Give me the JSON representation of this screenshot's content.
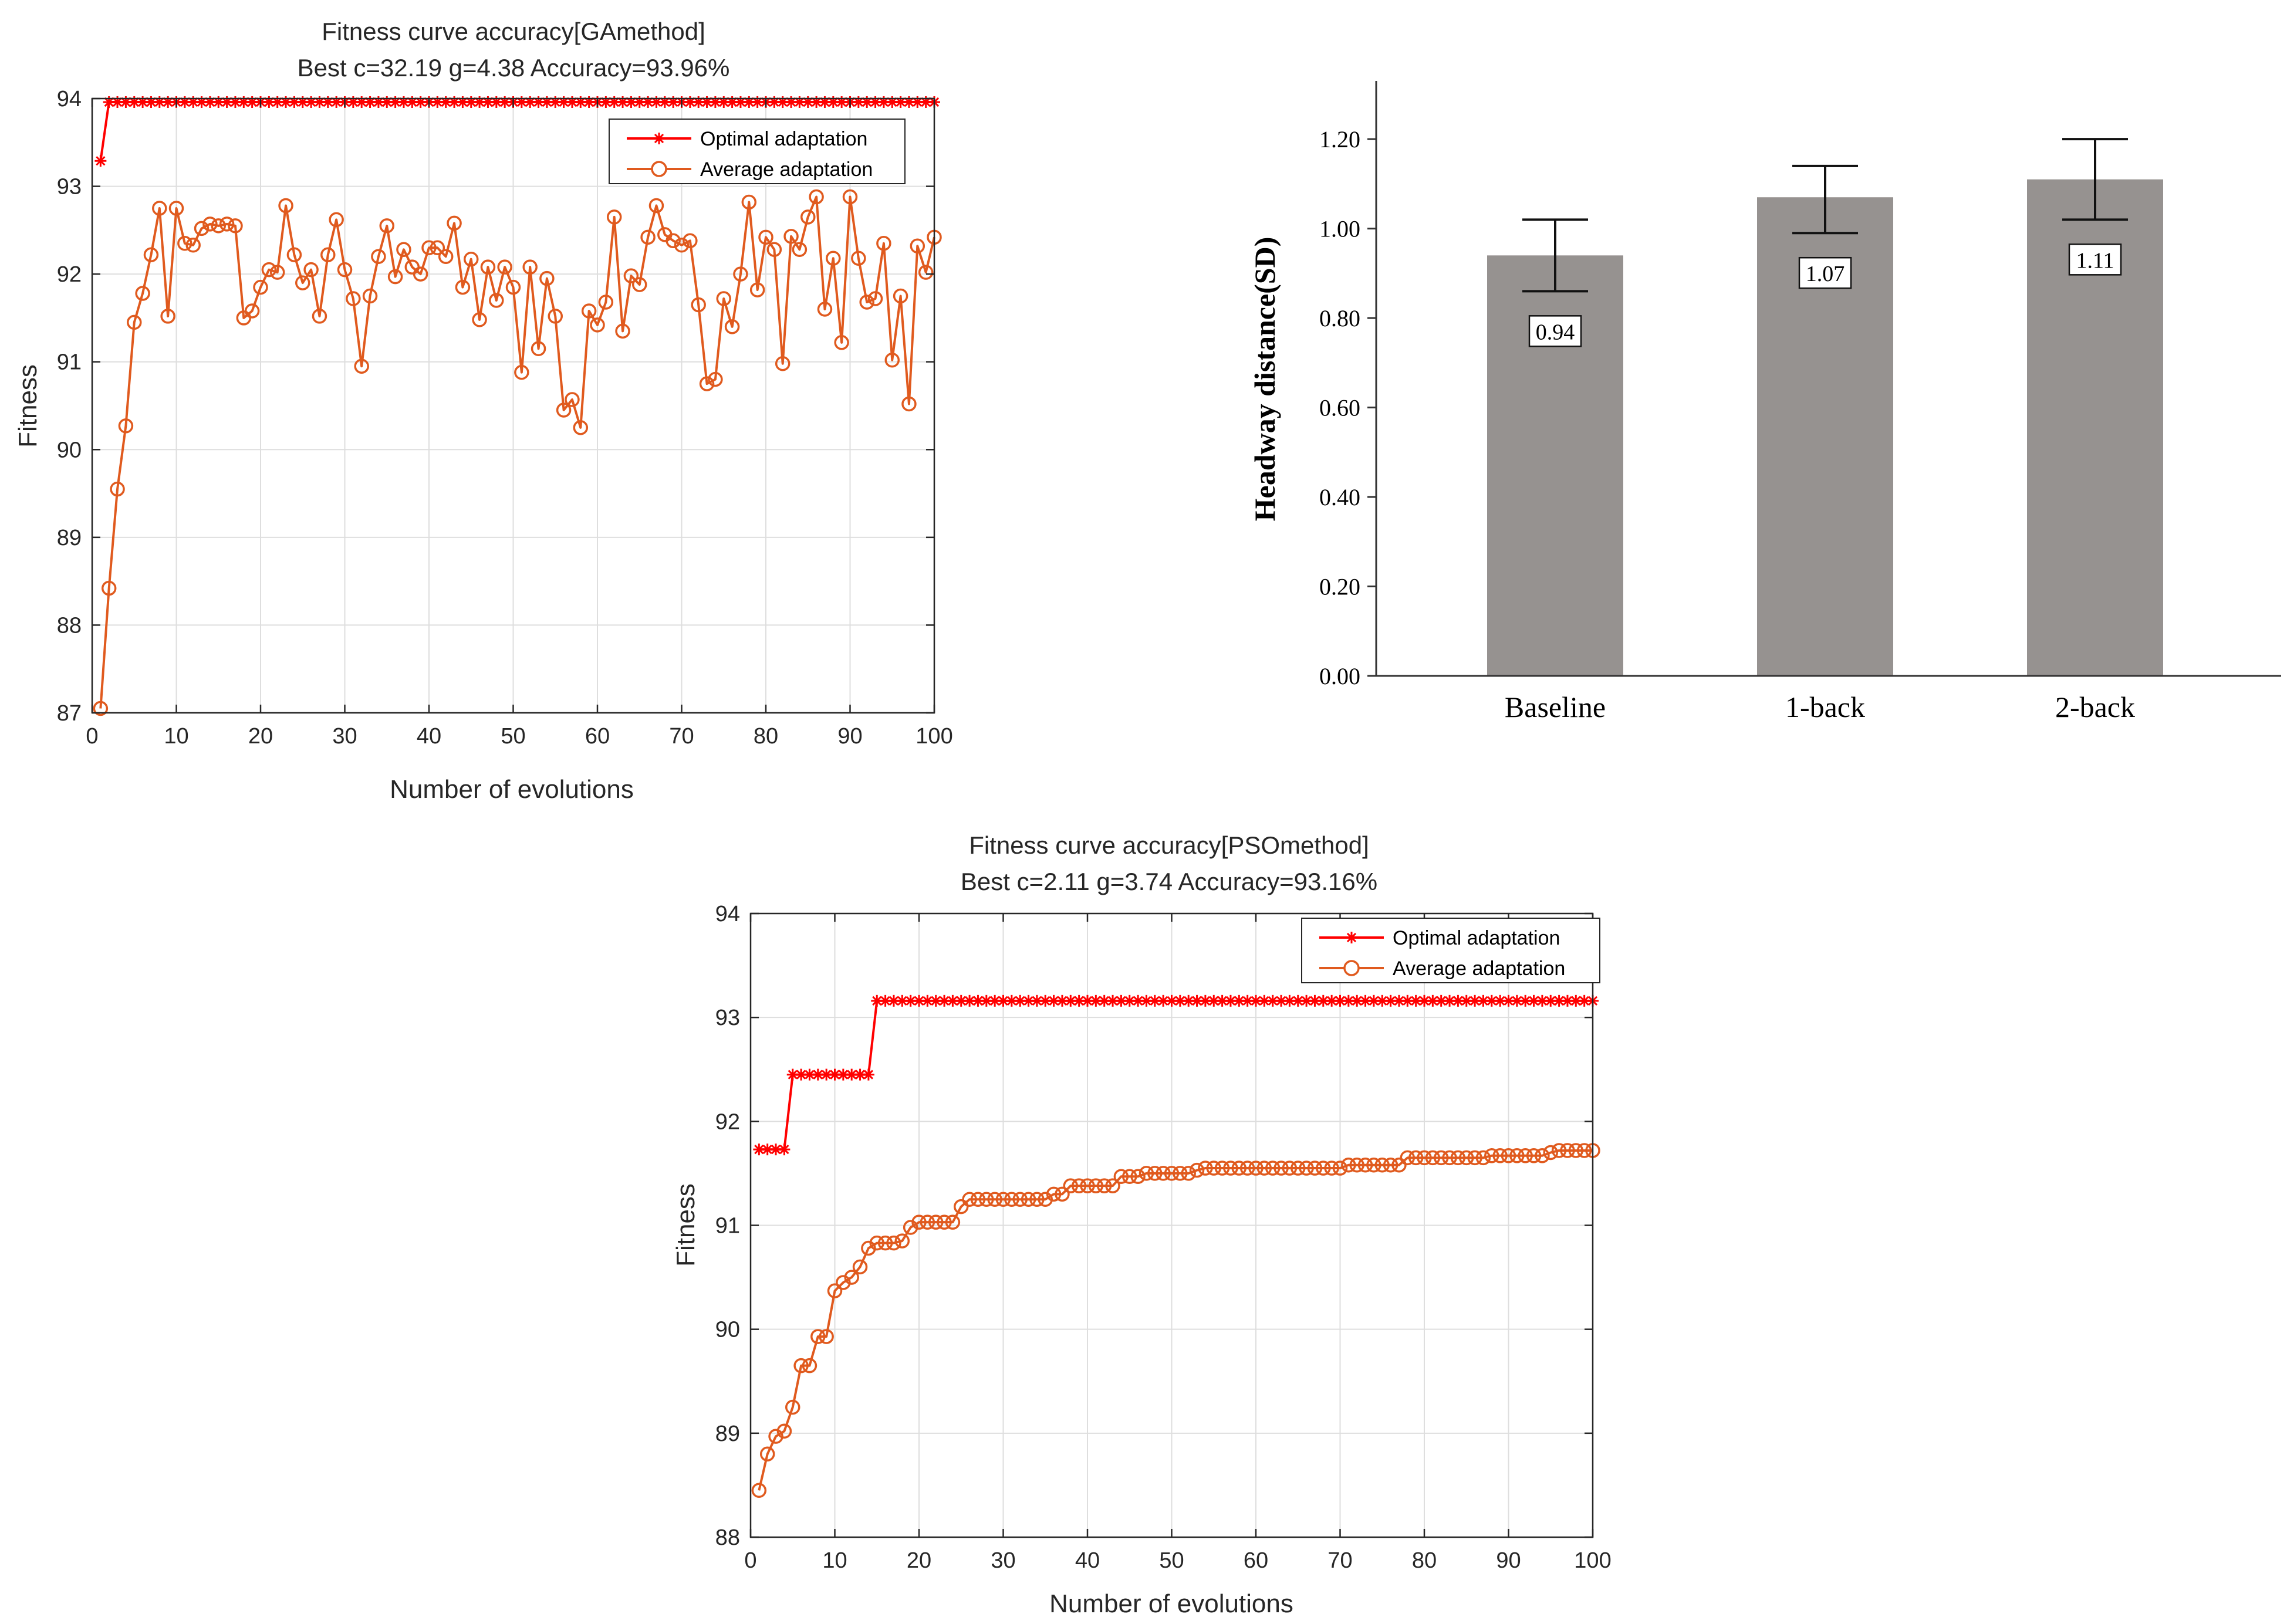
{
  "colors": {
    "optimal": "#ff0000",
    "average": "#e05a1e",
    "bar": "#969290",
    "grid": "#dedede",
    "axis": "#262626",
    "text": "#262626"
  },
  "chart_data": [
    {
      "id": "ga",
      "type": "line",
      "title": "Fitness curve accuracy[GAmethod]",
      "subtitle": "Best c=32.19 g=4.38 Accuracy=93.96%",
      "xlabel": "Number of evolutions",
      "ylabel": "Fitness",
      "xlim": [
        0,
        100
      ],
      "ylim": [
        87,
        94
      ],
      "xticks": [
        0,
        10,
        20,
        30,
        40,
        50,
        60,
        70,
        80,
        90,
        100
      ],
      "yticks": [
        87,
        88,
        89,
        90,
        91,
        92,
        93,
        94
      ],
      "grid": true,
      "legend_position": "top-right",
      "x": [
        1,
        2,
        3,
        4,
        5,
        6,
        7,
        8,
        9,
        10,
        11,
        12,
        13,
        14,
        15,
        16,
        17,
        18,
        19,
        20,
        21,
        22,
        23,
        24,
        25,
        26,
        27,
        28,
        29,
        30,
        31,
        32,
        33,
        34,
        35,
        36,
        37,
        38,
        39,
        40,
        41,
        42,
        43,
        44,
        45,
        46,
        47,
        48,
        49,
        50,
        51,
        52,
        53,
        54,
        55,
        56,
        57,
        58,
        59,
        60,
        61,
        62,
        63,
        64,
        65,
        66,
        67,
        68,
        69,
        70,
        71,
        72,
        73,
        74,
        75,
        76,
        77,
        78,
        79,
        80,
        81,
        82,
        83,
        84,
        85,
        86,
        87,
        88,
        89,
        90,
        91,
        92,
        93,
        94,
        95,
        96,
        97,
        98,
        99,
        100
      ],
      "series": [
        {
          "name": "Optimal adaptation",
          "marker": "asterisk",
          "values": [
            93.29,
            93.96,
            93.96,
            93.96,
            93.96,
            93.96,
            93.96,
            93.96,
            93.96,
            93.96,
            93.96,
            93.96,
            93.96,
            93.96,
            93.96,
            93.96,
            93.96,
            93.96,
            93.96,
            93.96,
            93.96,
            93.96,
            93.96,
            93.96,
            93.96,
            93.96,
            93.96,
            93.96,
            93.96,
            93.96,
            93.96,
            93.96,
            93.96,
            93.96,
            93.96,
            93.96,
            93.96,
            93.96,
            93.96,
            93.96,
            93.96,
            93.96,
            93.96,
            93.96,
            93.96,
            93.96,
            93.96,
            93.96,
            93.96,
            93.96,
            93.96,
            93.96,
            93.96,
            93.96,
            93.96,
            93.96,
            93.96,
            93.96,
            93.96,
            93.96,
            93.96,
            93.96,
            93.96,
            93.96,
            93.96,
            93.96,
            93.96,
            93.96,
            93.96,
            93.96,
            93.96,
            93.96,
            93.96,
            93.96,
            93.96,
            93.96,
            93.96,
            93.96,
            93.96,
            93.96,
            93.96,
            93.96,
            93.96,
            93.96,
            93.96,
            93.96,
            93.96,
            93.96,
            93.96,
            93.96,
            93.96,
            93.96,
            93.96,
            93.96,
            93.96,
            93.96,
            93.96,
            93.96,
            93.96,
            93.96
          ]
        },
        {
          "name": "Average adaptation",
          "marker": "circle",
          "values": [
            87.05,
            88.42,
            89.55,
            90.27,
            91.45,
            91.78,
            92.22,
            92.75,
            91.52,
            92.75,
            92.35,
            92.33,
            92.52,
            92.57,
            92.55,
            92.57,
            92.55,
            91.5,
            91.58,
            91.85,
            92.05,
            92.02,
            92.78,
            92.22,
            91.9,
            92.05,
            91.52,
            92.22,
            92.62,
            92.05,
            91.72,
            90.95,
            91.75,
            92.2,
            92.55,
            91.97,
            92.28,
            92.08,
            92.0,
            92.3,
            92.3,
            92.2,
            92.58,
            91.85,
            92.17,
            91.48,
            92.08,
            91.7,
            92.08,
            91.85,
            90.88,
            92.08,
            91.15,
            91.95,
            91.52,
            90.45,
            90.57,
            90.25,
            91.58,
            91.42,
            91.68,
            92.65,
            91.35,
            91.98,
            91.88,
            92.42,
            92.78,
            92.45,
            92.38,
            92.33,
            92.38,
            91.65,
            90.75,
            90.8,
            91.72,
            91.4,
            92.0,
            92.82,
            91.82,
            92.42,
            92.28,
            90.98,
            92.43,
            92.28,
            92.65,
            92.88,
            91.6,
            92.18,
            91.22,
            92.88,
            92.18,
            91.68,
            91.72,
            92.35,
            91.02,
            91.75,
            90.52,
            92.32,
            92.02,
            92.42
          ]
        }
      ]
    },
    {
      "id": "pso",
      "type": "line",
      "title": "Fitness curve accuracy[PSOmethod]",
      "subtitle": "Best c=2.11 g=3.74 Accuracy=93.16%",
      "xlabel": "Number of evolutions",
      "ylabel": "Fitness",
      "xlim": [
        0,
        100
      ],
      "ylim": [
        88,
        94
      ],
      "xticks": [
        0,
        10,
        20,
        30,
        40,
        50,
        60,
        70,
        80,
        90,
        100
      ],
      "yticks": [
        88,
        89,
        90,
        91,
        92,
        93,
        94
      ],
      "grid": true,
      "legend_position": "top-right",
      "x": [
        1,
        2,
        3,
        4,
        5,
        6,
        7,
        8,
        9,
        10,
        11,
        12,
        13,
        14,
        15,
        16,
        17,
        18,
        19,
        20,
        21,
        22,
        23,
        24,
        25,
        26,
        27,
        28,
        29,
        30,
        31,
        32,
        33,
        34,
        35,
        36,
        37,
        38,
        39,
        40,
        41,
        42,
        43,
        44,
        45,
        46,
        47,
        48,
        49,
        50,
        51,
        52,
        53,
        54,
        55,
        56,
        57,
        58,
        59,
        60,
        61,
        62,
        63,
        64,
        65,
        66,
        67,
        68,
        69,
        70,
        71,
        72,
        73,
        74,
        75,
        76,
        77,
        78,
        79,
        80,
        81,
        82,
        83,
        84,
        85,
        86,
        87,
        88,
        89,
        90,
        91,
        92,
        93,
        94,
        95,
        96,
        97,
        98,
        99,
        100
      ],
      "series": [
        {
          "name": "Optimal adaptation",
          "marker": "asterisk",
          "values": [
            91.73,
            91.73,
            91.73,
            91.73,
            92.45,
            92.45,
            92.45,
            92.45,
            92.45,
            92.45,
            92.45,
            92.45,
            92.45,
            92.45,
            93.16,
            93.16,
            93.16,
            93.16,
            93.16,
            93.16,
            93.16,
            93.16,
            93.16,
            93.16,
            93.16,
            93.16,
            93.16,
            93.16,
            93.16,
            93.16,
            93.16,
            93.16,
            93.16,
            93.16,
            93.16,
            93.16,
            93.16,
            93.16,
            93.16,
            93.16,
            93.16,
            93.16,
            93.16,
            93.16,
            93.16,
            93.16,
            93.16,
            93.16,
            93.16,
            93.16,
            93.16,
            93.16,
            93.16,
            93.16,
            93.16,
            93.16,
            93.16,
            93.16,
            93.16,
            93.16,
            93.16,
            93.16,
            93.16,
            93.16,
            93.16,
            93.16,
            93.16,
            93.16,
            93.16,
            93.16,
            93.16,
            93.16,
            93.16,
            93.16,
            93.16,
            93.16,
            93.16,
            93.16,
            93.16,
            93.16,
            93.16,
            93.16,
            93.16,
            93.16,
            93.16,
            93.16,
            93.16,
            93.16,
            93.16,
            93.16,
            93.16,
            93.16,
            93.16,
            93.16,
            93.16,
            93.16,
            93.16,
            93.16,
            93.16,
            93.16
          ]
        },
        {
          "name": "Average adaptation",
          "marker": "circle",
          "values": [
            88.45,
            88.8,
            88.97,
            89.02,
            89.25,
            89.65,
            89.65,
            89.93,
            89.93,
            90.37,
            90.45,
            90.5,
            90.6,
            90.78,
            90.83,
            90.83,
            90.83,
            90.85,
            90.98,
            91.03,
            91.03,
            91.03,
            91.03,
            91.03,
            91.18,
            91.25,
            91.25,
            91.25,
            91.25,
            91.25,
            91.25,
            91.25,
            91.25,
            91.25,
            91.25,
            91.3,
            91.3,
            91.38,
            91.38,
            91.38,
            91.38,
            91.38,
            91.38,
            91.47,
            91.47,
            91.47,
            91.5,
            91.5,
            91.5,
            91.5,
            91.5,
            91.5,
            91.53,
            91.55,
            91.55,
            91.55,
            91.55,
            91.55,
            91.55,
            91.55,
            91.55,
            91.55,
            91.55,
            91.55,
            91.55,
            91.55,
            91.55,
            91.55,
            91.55,
            91.55,
            91.58,
            91.58,
            91.58,
            91.58,
            91.58,
            91.58,
            91.58,
            91.65,
            91.65,
            91.65,
            91.65,
            91.65,
            91.65,
            91.65,
            91.65,
            91.65,
            91.65,
            91.67,
            91.67,
            91.67,
            91.67,
            91.67,
            91.67,
            91.67,
            91.7,
            91.72,
            91.72,
            91.72,
            91.72,
            91.72
          ]
        }
      ]
    },
    {
      "id": "headway",
      "type": "bar",
      "title": "",
      "xlabel": "",
      "ylabel": "Headway distance(SD)",
      "ylim": [
        0,
        1.33
      ],
      "yticks": [
        "0.00",
        "0.20",
        "0.40",
        "0.60",
        "0.80",
        "1.00",
        "1.20"
      ],
      "grid": false,
      "categories": [
        "Baseline",
        "1-back",
        "2-back"
      ],
      "values": [
        0.94,
        1.07,
        1.11
      ],
      "value_labels": [
        "0.94",
        "1.07",
        "1.11"
      ],
      "error_low": [
        0.86,
        0.99,
        1.02
      ],
      "error_high": [
        1.02,
        1.14,
        1.2
      ]
    }
  ]
}
